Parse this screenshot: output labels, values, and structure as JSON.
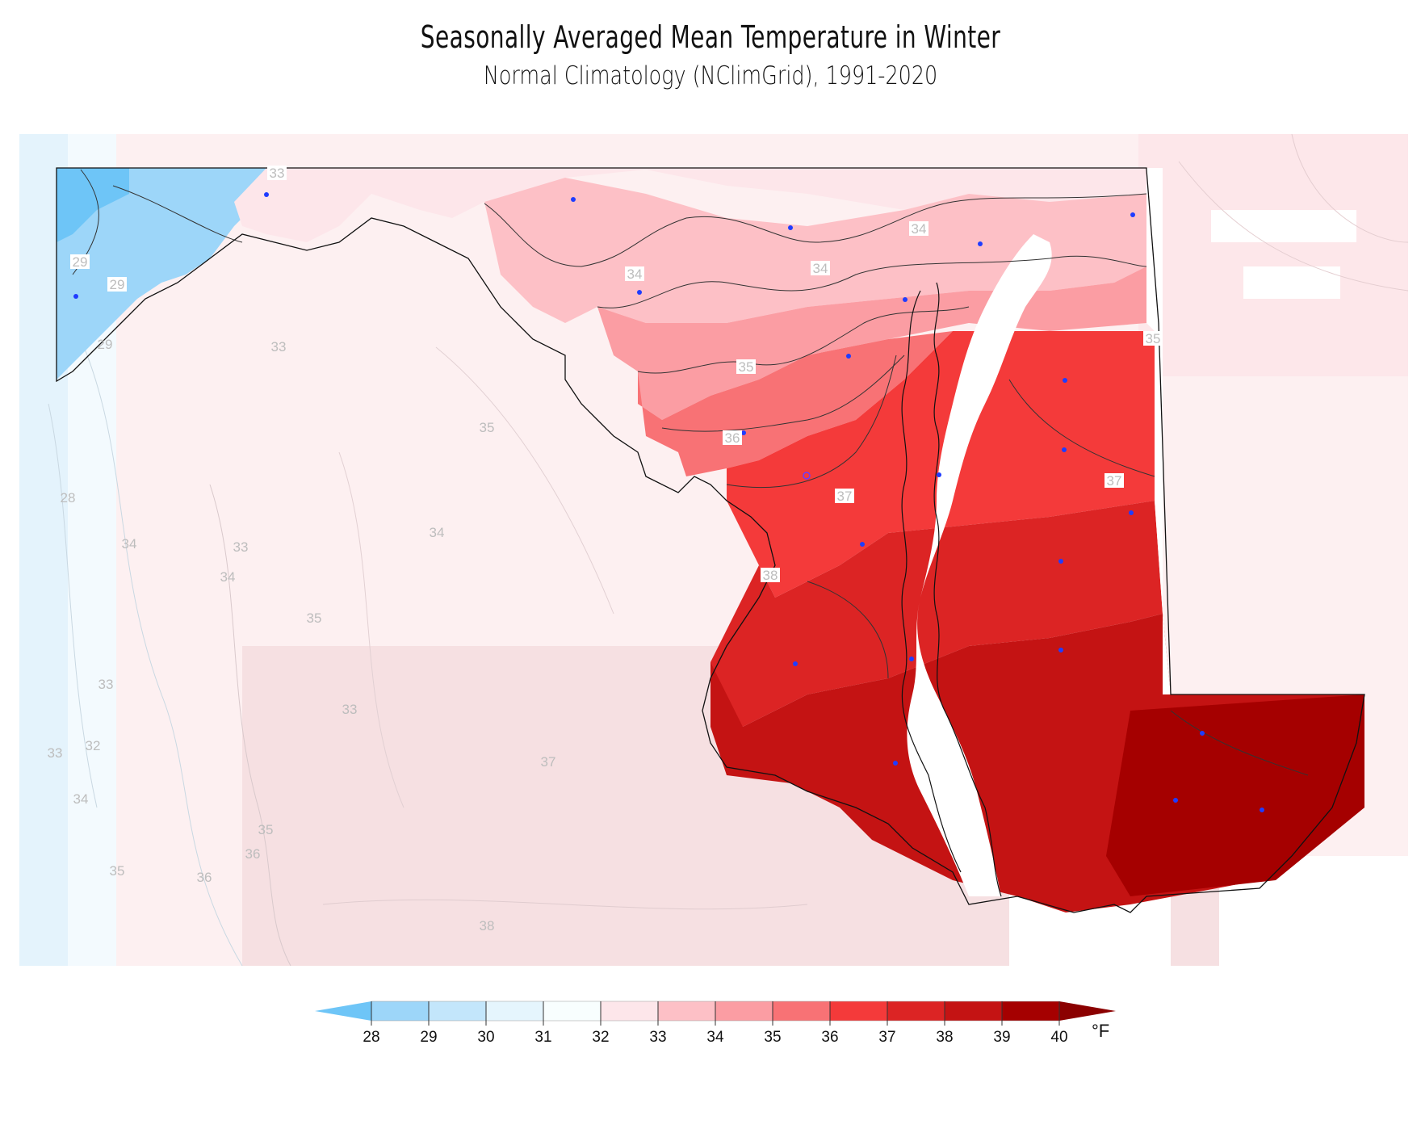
{
  "title": "Seasonally Averaged Mean Temperature in Winter",
  "subtitle": "Normal Climatology (NClimGrid), 1991-2020",
  "colorbar": {
    "unit": "°F",
    "ticks": [
      "28",
      "29",
      "30",
      "31",
      "32",
      "33",
      "34",
      "35",
      "36",
      "37",
      "38",
      "39",
      "40"
    ],
    "colors": [
      "#6ec5f7",
      "#9dd6f9",
      "#c3e6fb",
      "#e5f5fd",
      "#f8fefe",
      "#fde6ea",
      "#fdc0c6",
      "#fb9da3",
      "#f87275",
      "#f43a3a",
      "#dc2424",
      "#c41313",
      "#a50000",
      "#8b0000"
    ]
  },
  "contour_labels": {
    "inside": [
      "33",
      "34",
      "34",
      "34",
      "35",
      "36",
      "37",
      "37",
      "38",
      "29",
      "29",
      "29",
      "35"
    ],
    "outside": [
      "33",
      "35",
      "28",
      "34",
      "33",
      "34",
      "35",
      "34",
      "33",
      "33",
      "32",
      "33",
      "34",
      "35",
      "36",
      "36",
      "35",
      "37",
      "38"
    ]
  }
}
